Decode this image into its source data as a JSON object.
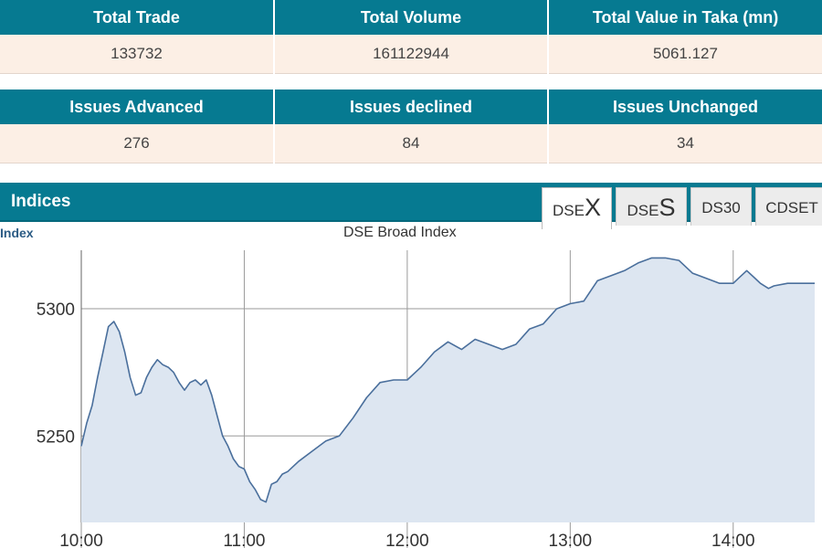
{
  "market_summary": {
    "headers": [
      "Total Trade",
      "Total Volume",
      "Total Value in Taka (mn)"
    ],
    "values": [
      "133732",
      "161122944",
      "5061.127"
    ]
  },
  "issues_summary": {
    "headers": [
      "Issues Advanced",
      "Issues declined",
      "Issues Unchanged"
    ],
    "values": [
      "276",
      "84",
      "34"
    ]
  },
  "indices": {
    "title": "Indices",
    "index_label": "Index",
    "tabs": [
      {
        "prefix": "DSE",
        "suffix": "X",
        "active": true
      },
      {
        "prefix": "DSE",
        "suffix": "S",
        "active": false
      },
      {
        "prefix": "DS30",
        "suffix": "",
        "active": false
      },
      {
        "prefix": "CDSET",
        "suffix": "",
        "active": false
      }
    ]
  },
  "colors": {
    "header_bg": "#067a91",
    "row_bg": "#fcefe5",
    "line": "#4a6f9c",
    "area_fill": "#dde6f1",
    "grid": "#9a9a9a"
  },
  "chart_data": {
    "type": "area",
    "title": "DSE Broad Index",
    "xlabel": "",
    "ylabel": "",
    "x_ticks": [
      "10:00",
      "11:00",
      "12:00",
      "13:00",
      "14:00"
    ],
    "y_ticks": [
      5250,
      5300
    ],
    "xlim": [
      "10:00",
      "14:30"
    ],
    "ylim": [
      5216,
      5323
    ],
    "grid": true,
    "legend": "none",
    "series": [
      {
        "x": [
          "10:00",
          "10:02",
          "10:04",
          "10:06",
          "10:08",
          "10:10",
          "10:12",
          "10:14",
          "10:16",
          "10:18",
          "10:20",
          "10:22",
          "10:24",
          "10:26",
          "10:28",
          "10:30",
          "10:32",
          "10:34",
          "10:36",
          "10:38",
          "10:40",
          "10:42",
          "10:44",
          "10:46",
          "10:48",
          "10:50",
          "10:52",
          "10:54",
          "10:56",
          "10:58",
          "11:00",
          "11:02",
          "11:04",
          "11:06",
          "11:08",
          "11:10",
          "11:12",
          "11:14",
          "11:16",
          "11:18",
          "11:20",
          "11:25",
          "11:30",
          "11:35",
          "11:40",
          "11:45",
          "11:50",
          "11:55",
          "12:00",
          "12:05",
          "12:10",
          "12:15",
          "12:20",
          "12:25",
          "12:30",
          "12:35",
          "12:40",
          "12:45",
          "12:50",
          "12:55",
          "13:00",
          "13:05",
          "13:10",
          "13:15",
          "13:20",
          "13:25",
          "13:30",
          "13:35",
          "13:40",
          "13:45",
          "13:50",
          "13:55",
          "14:00",
          "14:02",
          "14:05",
          "14:08",
          "14:10",
          "14:13",
          "14:15",
          "14:20",
          "14:25",
          "14:30"
        ],
        "values": [
          5246,
          5255,
          5262,
          5273,
          5283,
          5293,
          5295,
          5291,
          5283,
          5273,
          5266,
          5267,
          5273,
          5277,
          5280,
          5278,
          5277,
          5275,
          5271,
          5268,
          5271,
          5272,
          5270,
          5272,
          5266,
          5258,
          5250,
          5246,
          5241,
          5238,
          5237,
          5232,
          5229,
          5225,
          5224,
          5231,
          5232,
          5235,
          5236,
          5238,
          5240,
          5244,
          5248,
          5250,
          5257,
          5265,
          5271,
          5272,
          5272,
          5277,
          5283,
          5287,
          5284,
          5288,
          5286,
          5284,
          5286,
          5292,
          5294,
          5300,
          5302,
          5303,
          5311,
          5313,
          5315,
          5318,
          5320,
          5320,
          5319,
          5314,
          5312,
          5310,
          5310,
          5312,
          5315,
          5312,
          5310,
          5308,
          5309,
          5310,
          5310,
          5310
        ]
      }
    ]
  }
}
